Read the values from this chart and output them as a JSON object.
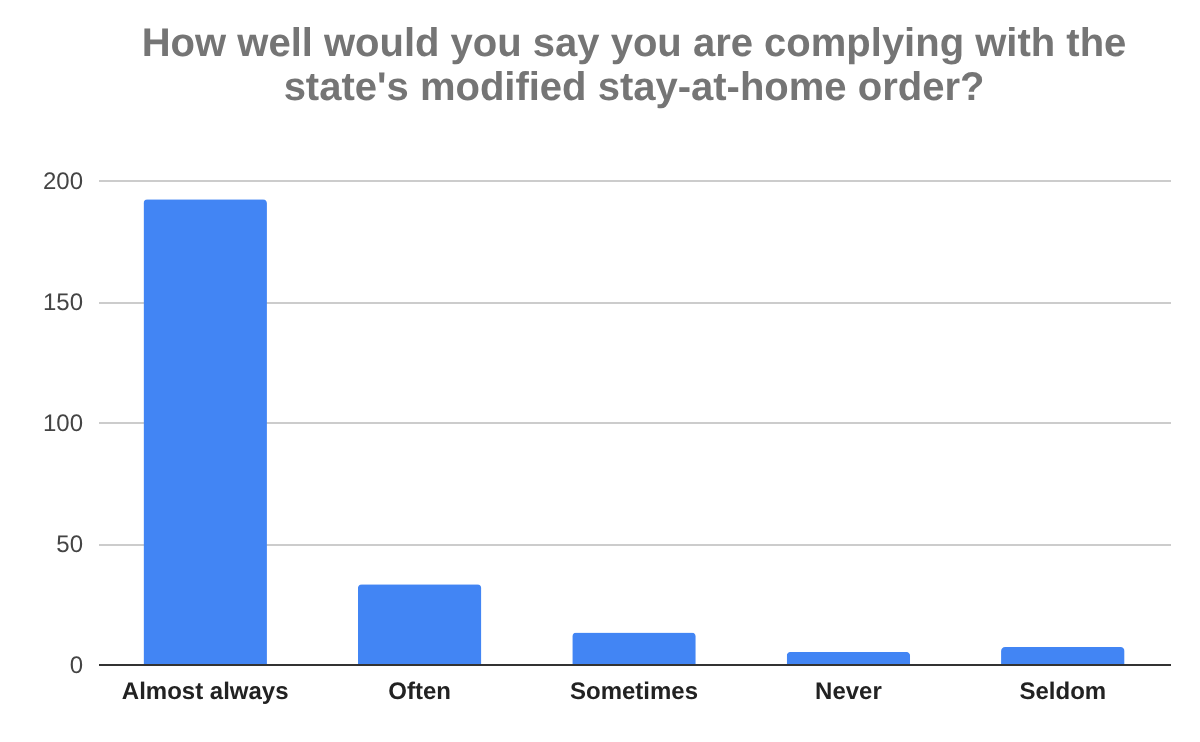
{
  "chart_data": {
    "type": "bar",
    "title": [
      "How well would you say you are complying with the",
      "state's modified stay-at-home order?"
    ],
    "categories": [
      "Almost always",
      "Often",
      "Sometimes",
      "Never",
      "Seldom"
    ],
    "values": [
      192,
      33,
      13,
      5,
      7
    ],
    "color": "#4285f4",
    "ylim": [
      0,
      200
    ],
    "yticks": [
      0,
      50,
      100,
      150,
      200
    ],
    "grid": "y"
  }
}
